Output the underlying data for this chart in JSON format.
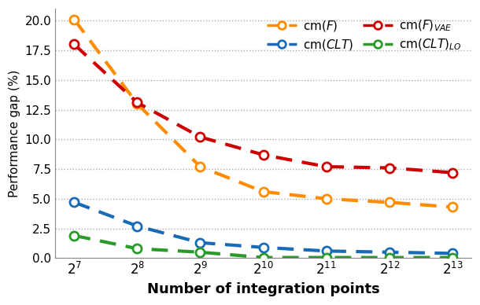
{
  "x_labels": [
    "$2^7$",
    "$2^8$",
    "$2^9$",
    "$2^{10}$",
    "$2^{11}$",
    "$2^{12}$",
    "$2^{13}$"
  ],
  "x_values": [
    7,
    8,
    9,
    10,
    11,
    12,
    13
  ],
  "series_order": [
    "cm(F)",
    "cm(F)_VAE",
    "cm(CLT)",
    "cm(CLT)_LO"
  ],
  "series": {
    "cm(F)": {
      "values": [
        20.1,
        13.0,
        7.7,
        5.6,
        5.0,
        4.7,
        4.3
      ],
      "color": "#FF8C00"
    },
    "cm(F)_VAE": {
      "values": [
        18.0,
        13.1,
        10.2,
        8.7,
        7.7,
        7.6,
        7.2
      ],
      "color": "#CC0000"
    },
    "cm(CLT)": {
      "values": [
        4.7,
        2.7,
        1.3,
        0.9,
        0.6,
        0.5,
        0.4
      ],
      "color": "#1A6BB5"
    },
    "cm(CLT)_LO": {
      "values": [
        1.9,
        0.8,
        0.5,
        0.05,
        0.05,
        0.05,
        0.05
      ],
      "color": "#2A9A2A"
    }
  },
  "legend_order": [
    "cm(F)",
    "cm(CLT)",
    "cm(F)_VAE",
    "cm(CLT)_LO"
  ],
  "legend_labels": {
    "cm(F)": "cm($\\mathit{F}$)",
    "cm(F)_VAE": "cm($\\mathit{F}$)$_{\\mathit{VAE}}$",
    "cm(CLT)": "cm($\\mathit{CLT}$)",
    "cm(CLT)_LO": "cm($\\mathit{CLT}$)$_{\\mathit{LO}}$"
  },
  "ylabel": "Performance gap (%)",
  "xlabel": "Number of integration points",
  "ylim": [
    0,
    21.0
  ],
  "yticks": [
    0.0,
    2.5,
    5.0,
    7.5,
    10.0,
    12.5,
    15.0,
    17.5,
    20.0
  ],
  "bg_color": "#FFFFFF",
  "grid_color": "#AAAAAA"
}
